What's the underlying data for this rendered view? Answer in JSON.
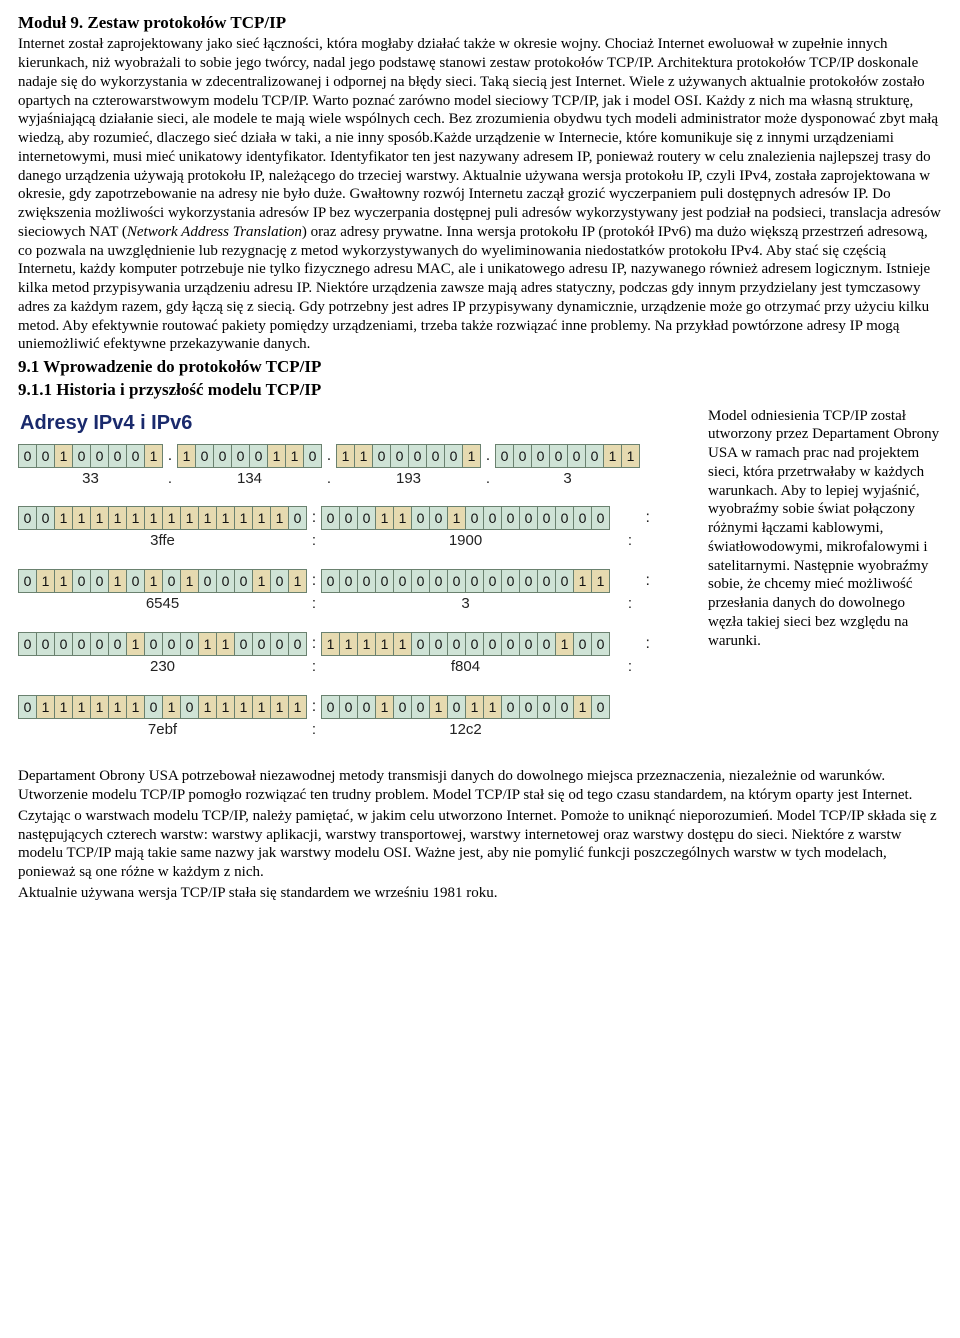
{
  "title": "Moduł 9. Zestaw protokołów TCP/IP",
  "para1_prefix": "Internet został zaprojektowany jako sieć łączności, która mogłaby działać także w okresie wojny. Chociaż Internet ewoluował w zupełnie innych kierunkach, niż wyobrażali to sobie jego twórcy, nadal jego podstawę stanowi zestaw protokołów TCP/IP. Architektura protokołów TCP/IP doskonale nadaje się do wykorzystania w zdecentralizowanej i odpornej na błędy sieci. Taką siecią jest Internet. Wiele z używanych aktualnie protokołów zostało opartych na czterowarstwowym modelu TCP/IP. Warto poznać zarówno model sieciowy TCP/IP, jak i model OSI. Każdy z nich ma własną strukturę, wyjaśniającą działanie sieci, ale modele te mają wiele wspólnych cech. Bez zrozumienia obydwu tych modeli administrator może dysponować zbyt małą wiedzą, aby rozumieć, dlaczego sieć działa w taki, a nie inny sposób.Każde urządzenie w Internecie, które komunikuje się z innymi urządzeniami internetowymi, musi mieć unikatowy identyfikator. Identyfikator ten jest nazywany adresem IP, ponieważ routery w celu znalezienia najlepszej trasy do danego urządzenia używają protokołu IP, należącego do trzeciej warstwy. Aktualnie używana wersja protokołu IP, czyli IPv4, została zaprojektowana w okresie, gdy zapotrzebowanie na adresy nie było duże. Gwałtowny rozwój Internetu zaczął grozić wyczerpaniem puli dostępnych adresów IP. Do zwiększenia możliwości wykorzystania adresów IP bez wyczerpania dostępnej puli adresów wykorzystywany jest podział na podsieci, translacja adresów sieciowych NAT (",
  "para1_italic": "Network Address Translation",
  "para1_suffix": ") oraz adresy prywatne. Inna wersja protokołu IP (protokół IPv6) ma dużo większą przestrzeń adresową, co pozwala na uwzględnienie lub rezygnację z metod wykorzystywanych do wyeliminowania niedostatków protokołu IPv4. Aby stać się częścią Internetu, każdy komputer potrzebuje nie tylko fizycznego adresu MAC, ale i unikatowego adresu IP, nazywanego również adresem logicznym. Istnieje kilka metod przypisywania urządzeniu adresu IP. Niektóre urządzenia zawsze mają adres statyczny, podczas gdy innym przydzielany jest tymczasowy adres za każdym razem, gdy łączą się z siecią. Gdy potrzebny jest adres IP przypisywany dynamicznie, urządzenie może go otrzymać przy użyciu kilku metod. Aby efektywnie routować pakiety pomiędzy urządzeniami, trzeba także rozwiązać inne problemy. Na przykład powtórzone adresy IP mogą uniemożliwić efektywne przekazywanie danych.",
  "h91": "9.1 Wprowadzenie do protokołów TCP/IP",
  "h911": "9.1.1 Historia i przyszłość modelu TCP/IP",
  "figure": {
    "title": "Adresy IPv4 i IPv6",
    "colors": {
      "bit0": "#cfe3d6",
      "bit1": "#e6dab0",
      "border": "#6a816f"
    },
    "ipv4": {
      "octets": [
        "00100001",
        "10000110",
        "11000001",
        "00000011"
      ],
      "labels": [
        "33",
        "134",
        "193",
        "3"
      ],
      "sep": "."
    },
    "ipv6_rows": [
      {
        "groups": [
          "0011111111111110",
          "0001100100000000"
        ],
        "labels": [
          "3ffe",
          "1900"
        ],
        "left_sep": ":",
        "right_sep": ":"
      },
      {
        "groups": [
          "0110010101000101",
          "0000000000000011"
        ],
        "labels": [
          "6545",
          "3"
        ],
        "left_sep": ":",
        "right_sep": ":"
      },
      {
        "groups": [
          "0000001000110000",
          "1111100000000100"
        ],
        "labels": [
          "230",
          "f804"
        ],
        "left_sep": ":",
        "right_sep": ":"
      },
      {
        "groups": [
          "0111111010111111",
          "0001001011000010"
        ],
        "labels": [
          "7ebf",
          "12c2"
        ],
        "left_sep": ":",
        "right_sep": ""
      }
    ]
  },
  "side_text": "Model odniesienia TCP/IP został utworzony przez Departament Obrony USA w ramach prac nad projektem sieci, która przetrwałaby w każdych warunkach. Aby to lepiej wyjaśnić, wyobraźmy sobie świat połączony różnymi łączami kablowymi, światłowodowymi, mikrofalowymi i satelitarnymi. Następnie wyobraźmy sobie, że chcemy mieć możliwość przesłania danych do dowolnego węzła takiej sieci bez względu na warunki.",
  "para2": "Departament Obrony USA potrzebował niezawodnej metody transmisji danych do dowolnego miejsca przeznaczenia, niezależnie od warunków. Utworzenie modelu TCP/IP pomogło rozwiązać ten trudny problem. Model TCP/IP stał się od tego czasu standardem, na którym oparty jest Internet.",
  "para3": "Czytając o warstwach modelu TCP/IP, należy pamiętać, w jakim celu utworzono Internet. Pomoże to uniknąć nieporozumień. Model TCP/IP składa się z następujących czterech warstw: warstwy aplikacji, warstwy transportowej, warstwy internetowej oraz warstwy dostępu do sieci. Niektóre z warstw modelu TCP/IP mają takie same nazwy jak warstwy modelu OSI. Ważne jest, aby nie pomylić funkcji poszczególnych warstw w tych modelach, ponieważ są one różne w każdym z nich.",
  "para4": "Aktualnie używana wersja TCP/IP stała się standardem we wrześniu 1981 roku."
}
